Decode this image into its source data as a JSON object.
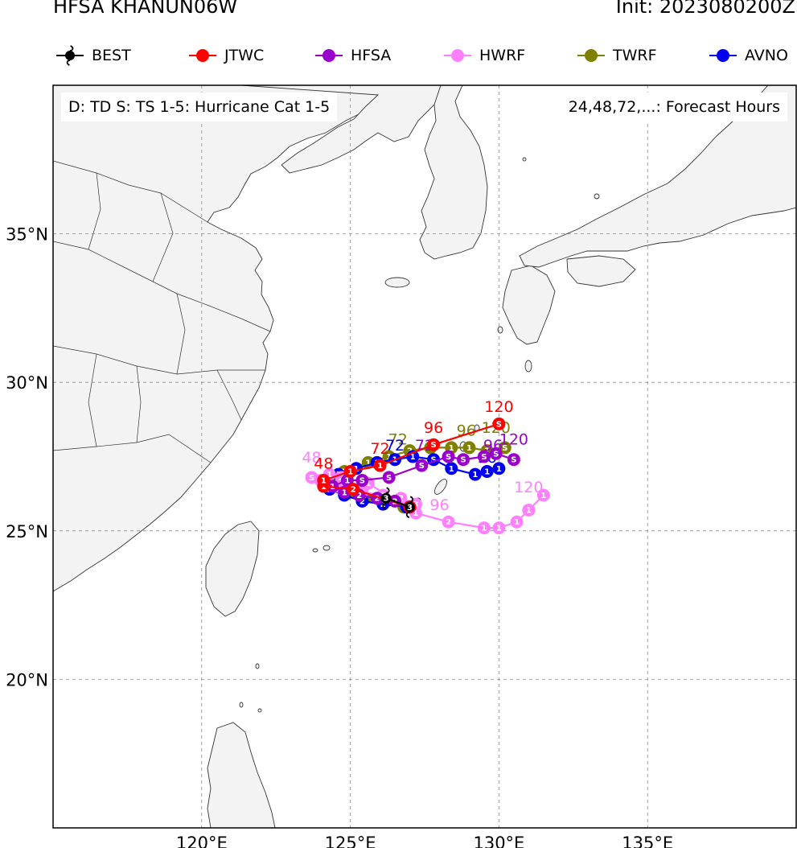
{
  "header": {
    "title_left": "HFSA KHANUN06W",
    "title_right": "Init: 2023080200Z"
  },
  "legend": [
    {
      "name": "BEST",
      "color": "#000000",
      "icon": "hurricane-icon"
    },
    {
      "name": "JTWC",
      "color": "#ff0000",
      "icon": "dot"
    },
    {
      "name": "HFSA",
      "color": "#9900cc",
      "icon": "dot"
    },
    {
      "name": "HWRF",
      "color": "#ff80ff",
      "icon": "dot"
    },
    {
      "name": "TWRF",
      "color": "#808000",
      "icon": "dot"
    },
    {
      "name": "AVNO",
      "color": "#0000ee",
      "icon": "dot"
    }
  ],
  "info": {
    "left": "D: TD  S: TS  1-5: Hurricane Cat 1-5",
    "right": "24,48,72,...: Forecast Hours"
  },
  "axes": {
    "lon_range": [
      115,
      140
    ],
    "lat_range": [
      15,
      40
    ],
    "lon_ticks": [
      {
        "value": 120,
        "label": "120°E"
      },
      {
        "value": 125,
        "label": "125°E"
      },
      {
        "value": 130,
        "label": "130°E"
      },
      {
        "value": 135,
        "label": "135°E"
      }
    ],
    "lat_ticks": [
      {
        "value": 20,
        "label": "20°N"
      },
      {
        "value": 25,
        "label": "25°N"
      },
      {
        "value": 30,
        "label": "30°N"
      },
      {
        "value": 35,
        "label": "35°N"
      }
    ],
    "grid": true
  },
  "tracks": [
    {
      "name": "TWRF",
      "color": "#808000",
      "points": [
        [
          126.8,
          25.8,
          "3"
        ],
        [
          126.2,
          26.0,
          "2"
        ],
        [
          125.5,
          26.1,
          "2"
        ],
        [
          125.0,
          26.3,
          "2"
        ],
        [
          124.6,
          26.5,
          "1"
        ],
        [
          124.3,
          26.7,
          "1"
        ],
        [
          124.8,
          27.0,
          "1"
        ],
        [
          125.6,
          27.3,
          "1"
        ],
        [
          126.3,
          27.5,
          "1"
        ],
        [
          127.0,
          27.7,
          "2"
        ],
        [
          127.7,
          27.8,
          "1"
        ],
        [
          128.4,
          27.8,
          "1"
        ],
        [
          129.0,
          27.8,
          "1"
        ],
        [
          129.6,
          27.7,
          "1"
        ],
        [
          130.2,
          27.8,
          "S"
        ]
      ],
      "labels": [
        {
          "text": "72",
          "lon": 126.6,
          "lat": 27.9
        },
        {
          "text": "96",
          "lon": 128.9,
          "lat": 28.2
        },
        {
          "text": "120",
          "lon": 129.9,
          "lat": 28.3
        }
      ]
    },
    {
      "name": "AVNO",
      "color": "#0000ee",
      "points": [
        [
          126.9,
          25.8,
          "3"
        ],
        [
          126.1,
          25.9,
          "2"
        ],
        [
          125.4,
          26.0,
          "2"
        ],
        [
          124.8,
          26.2,
          "2"
        ],
        [
          124.3,
          26.4,
          "1"
        ],
        [
          124.1,
          26.6,
          "1"
        ],
        [
          124.6,
          26.9,
          "1"
        ],
        [
          125.2,
          27.1,
          "1"
        ],
        [
          125.9,
          27.3,
          "1"
        ],
        [
          126.5,
          27.4,
          "1"
        ],
        [
          127.1,
          27.5,
          "1"
        ],
        [
          127.8,
          27.4,
          "S"
        ],
        [
          128.4,
          27.1,
          "1"
        ],
        [
          129.2,
          26.9,
          "1"
        ],
        [
          129.6,
          27.0,
          "1"
        ],
        [
          130.0,
          27.1,
          "1"
        ]
      ],
      "labels": [
        {
          "text": "72",
          "lon": 126.5,
          "lat": 27.7
        },
        {
          "text": "96",
          "lon": 129.6,
          "lat": 27.3
        }
      ]
    },
    {
      "name": "HWRF",
      "color": "#ff80ff",
      "points": [
        [
          127.2,
          25.9,
          "3"
        ],
        [
          126.7,
          26.1,
          "2"
        ],
        [
          126.1,
          26.2,
          "2"
        ],
        [
          125.4,
          26.3,
          "2"
        ],
        [
          124.6,
          26.5,
          "1"
        ],
        [
          124.0,
          26.7,
          "S"
        ],
        [
          123.7,
          26.8,
          "S"
        ],
        [
          124.3,
          26.9,
          "1"
        ],
        [
          124.7,
          26.8,
          "2"
        ],
        [
          125.6,
          26.6,
          "1"
        ],
        [
          127.2,
          25.6,
          "1"
        ],
        [
          128.3,
          25.3,
          "2"
        ],
        [
          129.5,
          25.1,
          "1"
        ],
        [
          130.0,
          25.1,
          "1"
        ],
        [
          130.6,
          25.3,
          "1"
        ],
        [
          131.0,
          25.7,
          "1"
        ],
        [
          131.5,
          26.2,
          "1"
        ]
      ],
      "labels": [
        {
          "text": "48",
          "lon": 123.7,
          "lat": 27.3
        },
        {
          "text": "96",
          "lon": 128.0,
          "lat": 25.7
        },
        {
          "text": "120",
          "lon": 131.0,
          "lat": 26.3
        }
      ]
    },
    {
      "name": "HFSA",
      "color": "#9900cc",
      "points": [
        [
          127.0,
          25.8,
          "3"
        ],
        [
          126.5,
          26.0,
          "2"
        ],
        [
          125.9,
          26.1,
          "2"
        ],
        [
          125.3,
          26.2,
          "2"
        ],
        [
          124.8,
          26.3,
          "1"
        ],
        [
          124.4,
          26.5,
          "1"
        ],
        [
          124.9,
          26.7,
          "1"
        ],
        [
          125.4,
          26.7,
          "S"
        ],
        [
          126.3,
          26.8,
          "S"
        ],
        [
          127.4,
          27.2,
          "S"
        ],
        [
          128.3,
          27.5,
          "S"
        ],
        [
          128.8,
          27.4,
          "S"
        ],
        [
          129.5,
          27.5,
          "S"
        ],
        [
          129.9,
          27.6,
          "S"
        ],
        [
          130.5,
          27.4,
          "S"
        ]
      ],
      "labels": [
        {
          "text": "72",
          "lon": 127.5,
          "lat": 27.7
        },
        {
          "text": "96",
          "lon": 129.8,
          "lat": 27.7
        },
        {
          "text": "120",
          "lon": 130.5,
          "lat": 27.9
        }
      ]
    },
    {
      "name": "JTWC",
      "color": "#ff0000",
      "points": [
        [
          127.0,
          25.8,
          "3"
        ],
        [
          125.1,
          26.4,
          "2"
        ],
        [
          124.1,
          26.5,
          "1"
        ],
        [
          124.1,
          26.7,
          "1"
        ],
        [
          125.0,
          27.0,
          "1"
        ],
        [
          126.0,
          27.2,
          "1"
        ],
        [
          127.8,
          27.9,
          "S"
        ],
        [
          130.0,
          28.6,
          "S"
        ]
      ],
      "labels": [
        {
          "text": "48",
          "lon": 124.1,
          "lat": 27.1
        },
        {
          "text": "72",
          "lon": 126.0,
          "lat": 27.6
        },
        {
          "text": "96",
          "lon": 127.8,
          "lat": 28.3
        },
        {
          "text": "120",
          "lon": 130.0,
          "lat": 29.0
        }
      ]
    },
    {
      "name": "BEST",
      "color": "#000000",
      "points": [
        [
          126.2,
          26.1,
          "3"
        ],
        [
          127.0,
          25.8,
          "3"
        ]
      ],
      "labels": []
    }
  ]
}
